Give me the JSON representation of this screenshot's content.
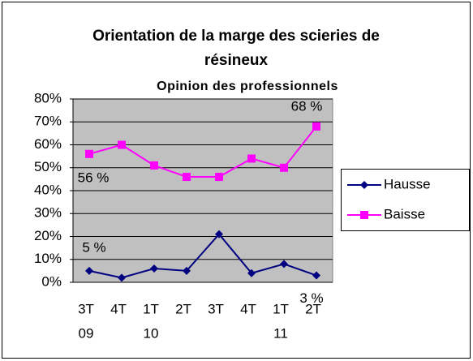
{
  "chart_data": {
    "type": "line",
    "title_lines": [
      "Orientation de la marge des scieries de",
      "résineux"
    ],
    "subtitle": "Opinion des professionnels",
    "categories": [
      "3T",
      "4T",
      "1T",
      "2T",
      "3T",
      "4T",
      "1T",
      "2T"
    ],
    "category_groups": [
      "09",
      null,
      "10",
      null,
      null,
      null,
      "11",
      null
    ],
    "series": [
      {
        "name": "Hausse",
        "color": "#000080",
        "marker": "diamond",
        "values": [
          5,
          2,
          6,
          5,
          21,
          4,
          8,
          3
        ],
        "value_labels": [
          "5 %",
          null,
          null,
          null,
          null,
          null,
          null,
          "3 %"
        ]
      },
      {
        "name": "Baisse",
        "color": "#ff00ff",
        "marker": "square",
        "values": [
          56,
          60,
          51,
          46,
          46,
          54,
          50,
          68
        ],
        "value_labels": [
          "56 %",
          null,
          null,
          null,
          null,
          null,
          null,
          "68 %"
        ]
      }
    ],
    "ylim": [
      0,
      80
    ],
    "yticks": [
      {
        "value": 0,
        "label": "0%"
      },
      {
        "value": 10,
        "label": "10%"
      },
      {
        "value": 20,
        "label": "20%"
      },
      {
        "value": 30,
        "label": "30%"
      },
      {
        "value": 40,
        "label": "40%"
      },
      {
        "value": 50,
        "label": "50%"
      },
      {
        "value": 60,
        "label": "60%"
      },
      {
        "value": 70,
        "label": "70%"
      },
      {
        "value": 80,
        "label": "80%"
      }
    ],
    "grid": true,
    "legend": "right",
    "plot_background": "#c0c0c0"
  }
}
